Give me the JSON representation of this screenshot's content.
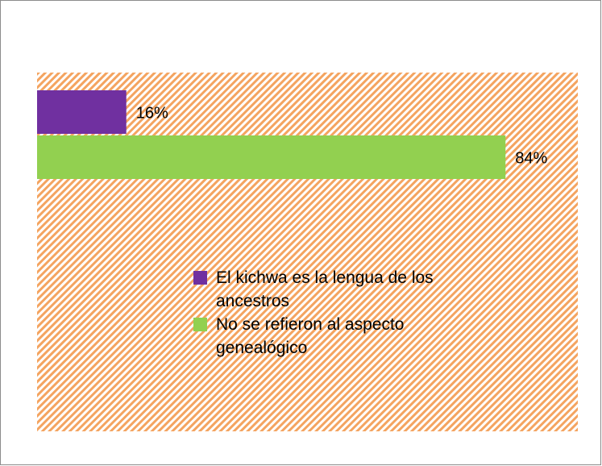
{
  "chart_data": {
    "type": "bar",
    "orientation": "horizontal",
    "series": [
      {
        "name": "El kichwa es la lengua de los ancestros",
        "color": "#7030a0",
        "values": [
          16
        ],
        "value_labels": [
          "16%"
        ]
      },
      {
        "name": "No se refieron al aspecto genealógico",
        "color": "#92d050",
        "values": [
          84
        ],
        "value_labels": [
          "84%"
        ]
      }
    ]
  }
}
